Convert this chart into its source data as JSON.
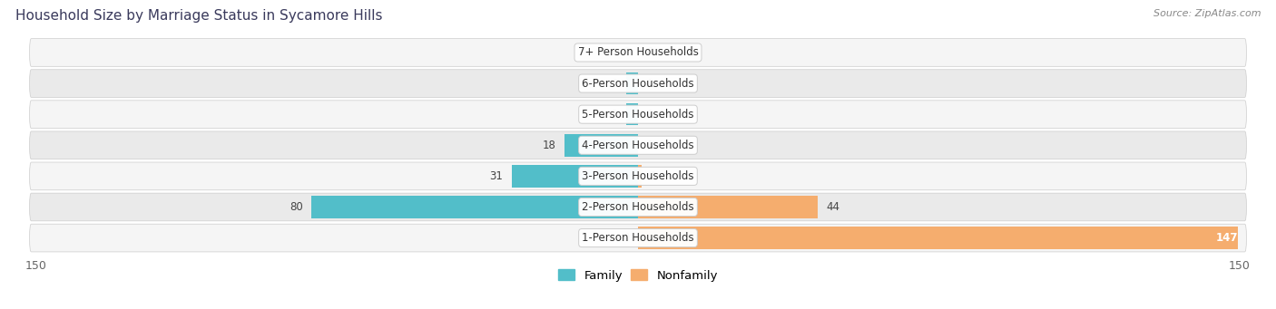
{
  "title": "Household Size by Marriage Status in Sycamore Hills",
  "source": "Source: ZipAtlas.com",
  "categories": [
    "7+ Person Households",
    "6-Person Households",
    "5-Person Households",
    "4-Person Households",
    "3-Person Households",
    "2-Person Households",
    "1-Person Households"
  ],
  "family_values": [
    0,
    3,
    3,
    18,
    31,
    80,
    0
  ],
  "nonfamily_values": [
    0,
    0,
    0,
    0,
    1,
    44,
    147
  ],
  "family_color": "#52bec9",
  "nonfamily_color": "#f5ad6e",
  "row_bg_colors": [
    "#f5f5f5",
    "#eaeaea"
  ],
  "xlim": 150,
  "legend_family": "Family",
  "legend_nonfamily": "Nonfamily"
}
